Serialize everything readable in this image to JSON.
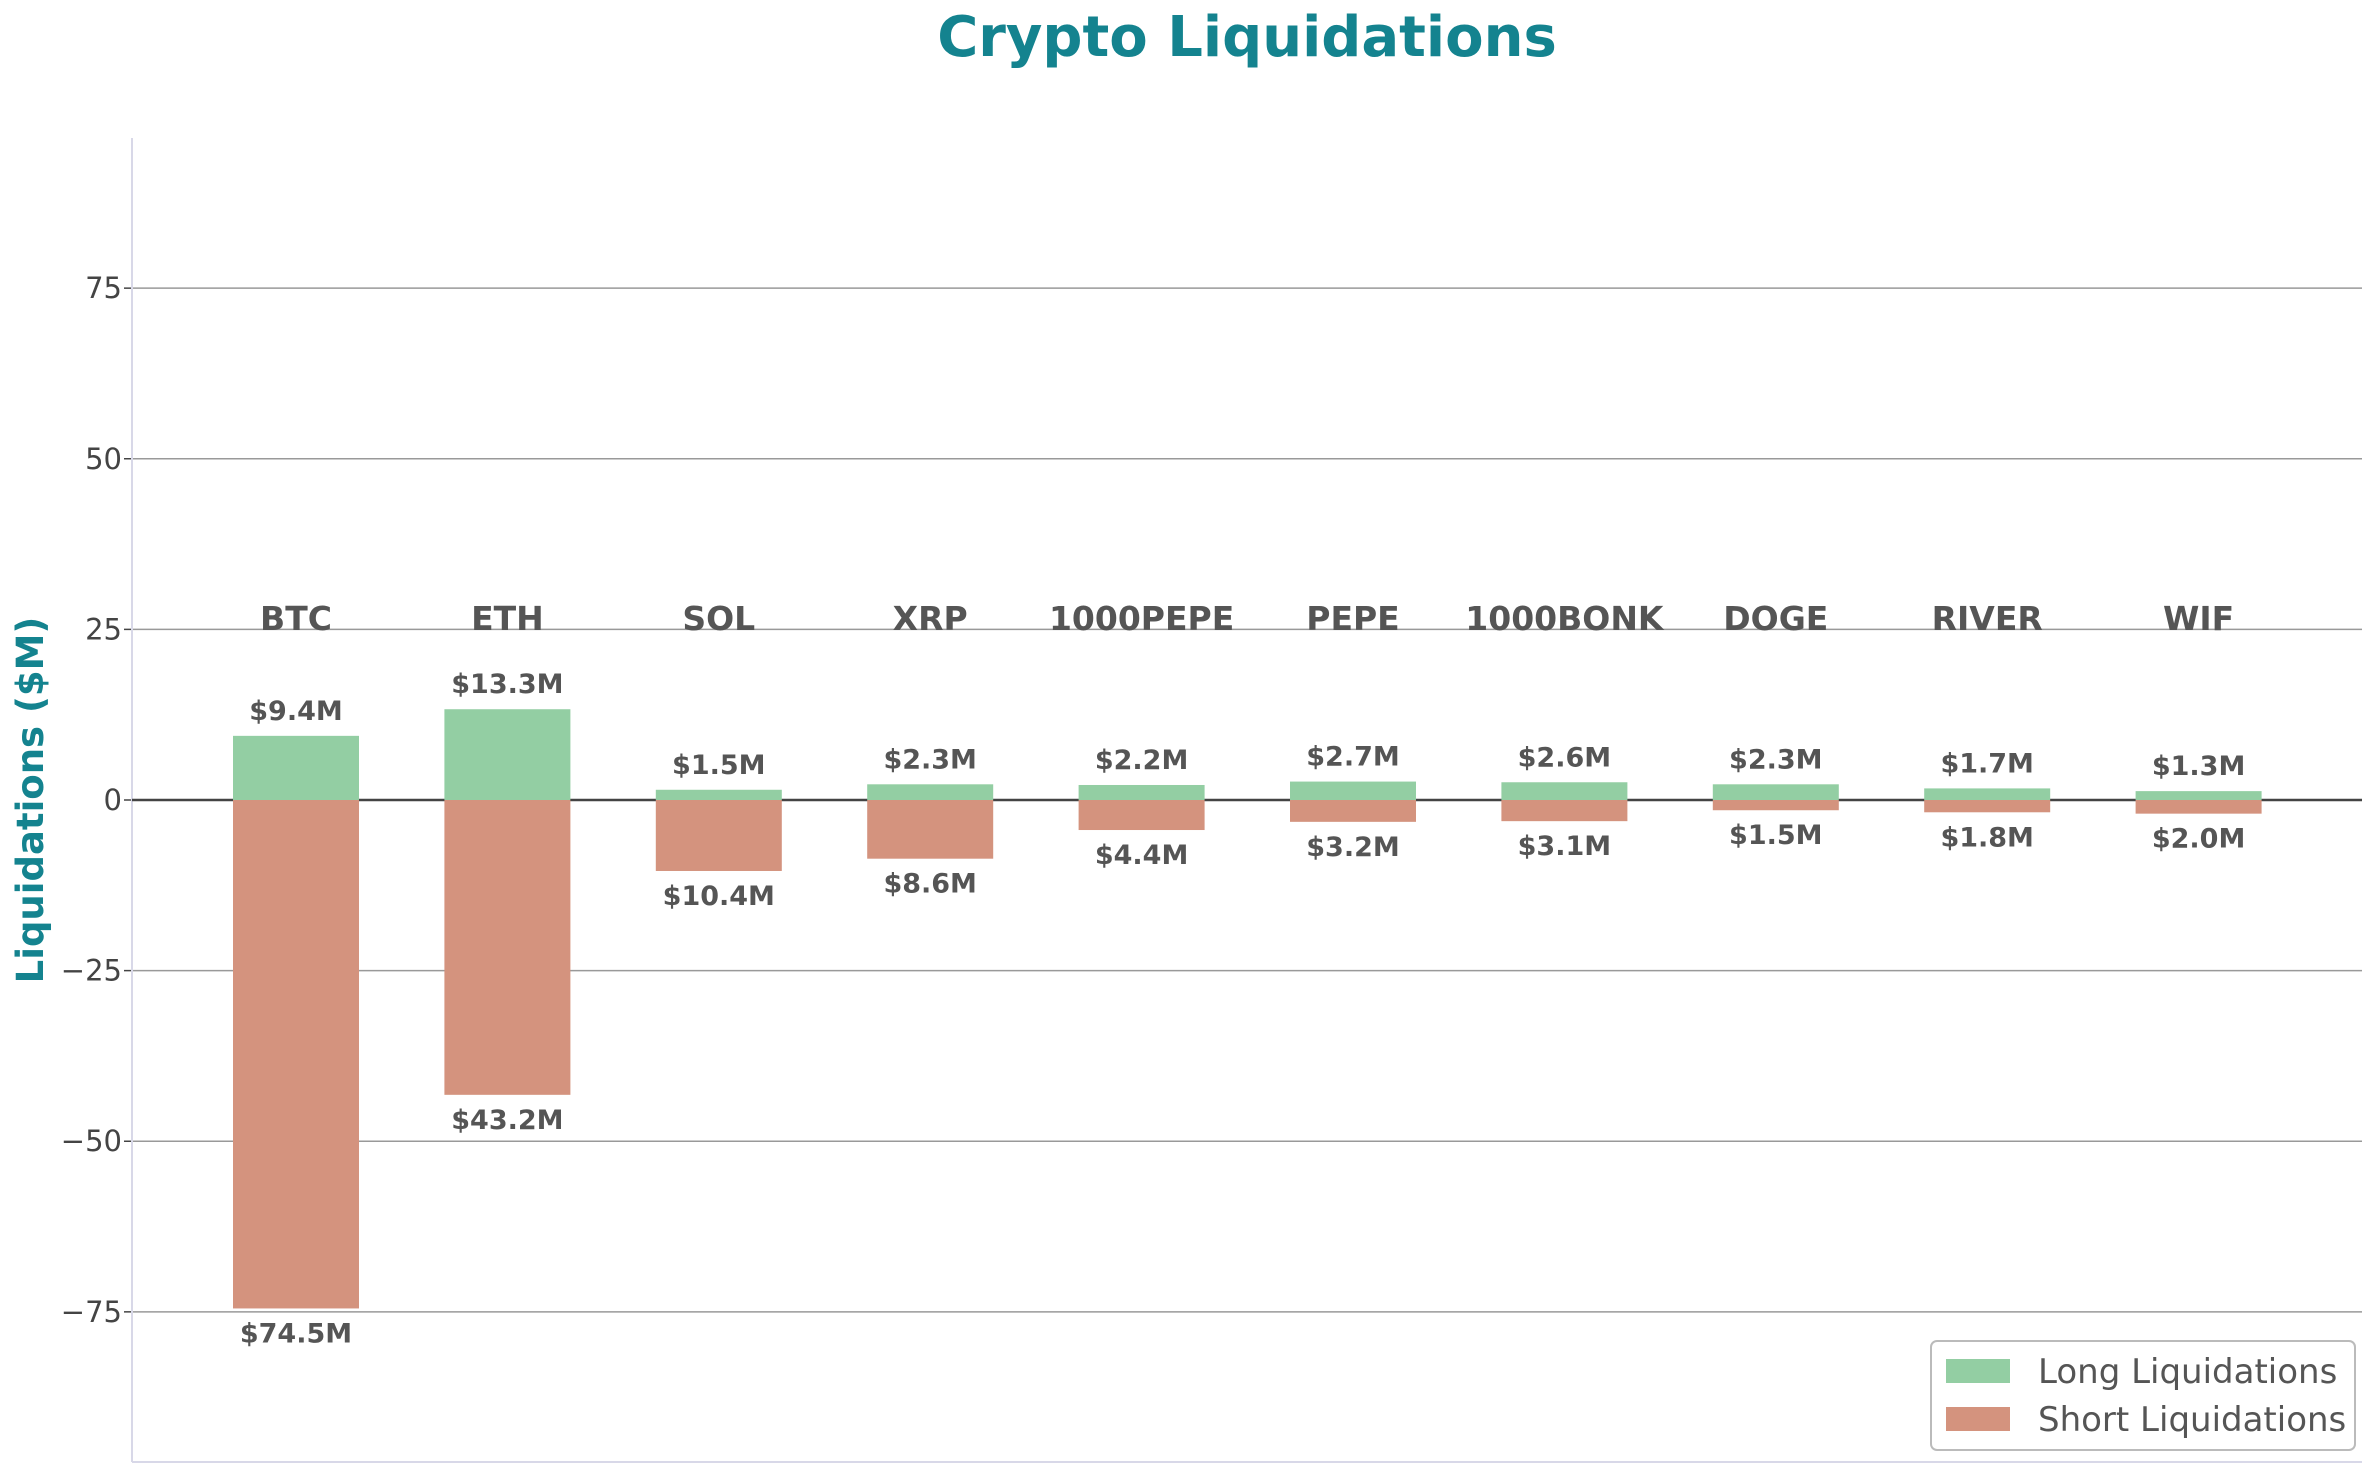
{
  "chart_data": {
    "type": "bar",
    "title": "Crypto Liquidations",
    "xlabel": "",
    "ylabel": "Liquidations ($M)",
    "ylim": [
      -97,
      97
    ],
    "yticks": [
      -75,
      -50,
      -25,
      0,
      25,
      50,
      75
    ],
    "ytick_labels": [
      "−75",
      "−50",
      "−25",
      "0",
      "25",
      "50",
      "75"
    ],
    "grid": true,
    "legend_position": "bottom-right",
    "categories": [
      "BTC",
      "ETH",
      "SOL",
      "XRP",
      "1000PEPE",
      "PEPE",
      "1000BONK",
      "DOGE",
      "RIVER",
      "WIF"
    ],
    "series": [
      {
        "name": "Long Liquidations",
        "color": "#93cea3",
        "values": [
          9.4,
          13.3,
          1.5,
          2.3,
          2.2,
          2.7,
          2.6,
          2.3,
          1.7,
          1.3
        ],
        "labels": [
          "$9.4M",
          "$13.3M",
          "$1.5M",
          "$2.3M",
          "$2.2M",
          "$2.7M",
          "$2.6M",
          "$2.3M",
          "$1.7M",
          "$1.3M"
        ]
      },
      {
        "name": "Short Liquidations",
        "color": "#d4937e",
        "values": [
          -74.5,
          -43.2,
          -10.4,
          -8.6,
          -4.4,
          -3.2,
          -3.1,
          -1.5,
          -1.8,
          -2.0
        ],
        "labels": [
          "$74.5M",
          "$43.2M",
          "$10.4M",
          "$8.6M",
          "$4.4M",
          "$3.2M",
          "$3.1M",
          "$1.5M",
          "$1.8M",
          "$2.0M"
        ]
      }
    ]
  }
}
